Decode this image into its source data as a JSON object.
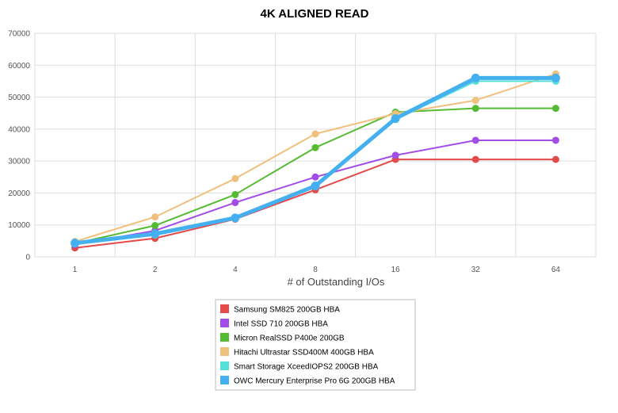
{
  "chart_data": {
    "type": "line",
    "title": "4K ALIGNED READ",
    "xlabel": "# of Outstanding I/Os",
    "ylabel": "",
    "categories": [
      "1",
      "2",
      "4",
      "8",
      "16",
      "32",
      "64"
    ],
    "ylim": [
      0,
      70000
    ],
    "yticks": [
      0,
      10000,
      20000,
      30000,
      40000,
      50000,
      60000,
      70000
    ],
    "grid": true,
    "legend_position": "bottom",
    "series": [
      {
        "name": "Samsung SM825 200GB HBA",
        "color": "#e34a4a",
        "values": [
          2800,
          5800,
          11800,
          21000,
          30500,
          30500,
          30500
        ]
      },
      {
        "name": "Intel SSD 710 200GB HBA",
        "color": "#a24de8",
        "values": [
          3800,
          8200,
          17000,
          25000,
          31800,
          36500,
          36500
        ]
      },
      {
        "name": "Micron RealSSD P400e 200GB",
        "color": "#55bb33",
        "values": [
          4200,
          9800,
          19500,
          34200,
          45300,
          46500,
          46500
        ]
      },
      {
        "name": "Hitachi Ultrastar SSD400M 400GB HBA",
        "color": "#f0c07e",
        "values": [
          4800,
          12500,
          24500,
          38500,
          44800,
          49000,
          57300
        ]
      },
      {
        "name": "Smart Storage XceedIOPS2 200GB HBA",
        "color": "#55e0d8",
        "values": [
          4200,
          6800,
          12000,
          22500,
          43000,
          55000,
          55000
        ]
      },
      {
        "name": "OWC Mercury Enterprise Pro 6G 200GB HBA",
        "color": "#45b0f0",
        "values": [
          4300,
          7200,
          12200,
          22200,
          43300,
          56000,
          56000
        ]
      }
    ]
  }
}
